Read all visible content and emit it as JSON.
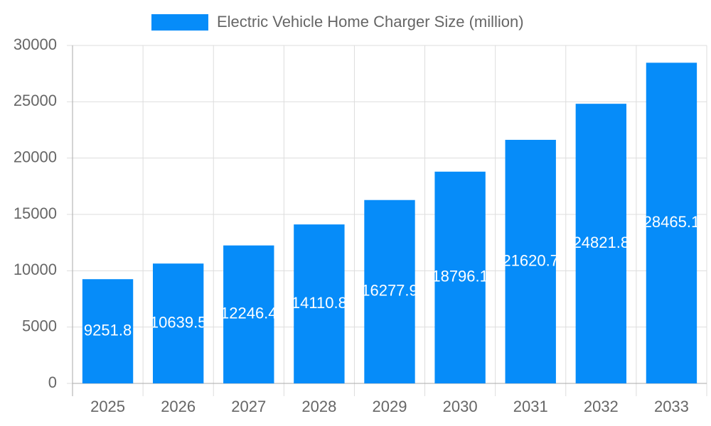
{
  "chart_data": {
    "type": "bar",
    "categories": [
      "2025",
      "2026",
      "2027",
      "2028",
      "2029",
      "2030",
      "2031",
      "2032",
      "2033"
    ],
    "series": [
      {
        "name": "Electric Vehicle Home Charger Size (million)",
        "color": "#068cf9",
        "values": [
          9251.8,
          10639.5,
          12246.4,
          14110.8,
          16277.9,
          18796.1,
          21620.7,
          24821.8,
          28465.1
        ]
      }
    ],
    "ylim": [
      0,
      30000
    ],
    "yticks": [
      0,
      5000,
      10000,
      15000,
      20000,
      25000,
      30000
    ],
    "grid": true
  }
}
